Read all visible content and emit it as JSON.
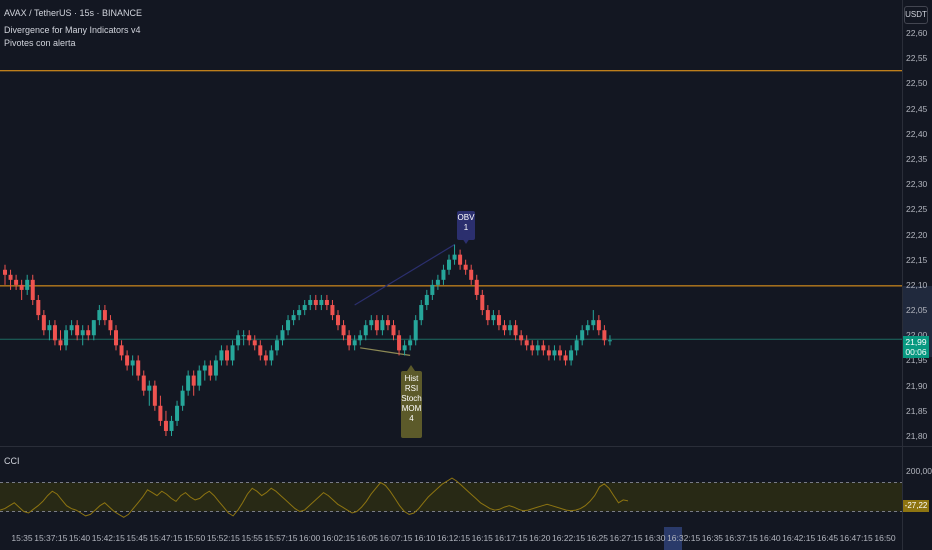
{
  "legend": {
    "symbol_line": "AVAX / TetherUS · 15s · BINANCE",
    "indicator_1": "Divergence for Many Indicators v4",
    "indicator_2": "Pivotes con alerta"
  },
  "currency_button": "USDT",
  "price_axis": {
    "ticks": [
      "22,60",
      "22,55",
      "22,50",
      "22,45",
      "22,40",
      "22,35",
      "22,30",
      "22,25",
      "22,20",
      "22,15",
      "22,10",
      "22,05",
      "22,00",
      "21,95",
      "21,90",
      "21,85",
      "21,80"
    ],
    "min": 21.78,
    "max": 22.62
  },
  "current_price": {
    "value": "21,99",
    "countdown": "00:06"
  },
  "horizontal_levels": {
    "resistance_top": 22.525,
    "resistance_mid": 22.098,
    "current": 21.992
  },
  "time_axis": {
    "ticks": [
      "15:35",
      "15:37:15",
      "15:40",
      "15:42:15",
      "15:45",
      "15:47:15",
      "15:50",
      "15:52:15",
      "15:55",
      "15:57:15",
      "16:00",
      "16:02:15",
      "16:05",
      "16:07:15",
      "16:10",
      "16:12:15",
      "16:15",
      "16:17:15",
      "16:20",
      "16:22:15",
      "16:25",
      "16:27:15",
      "16:30",
      "16:32:15",
      "16:35",
      "16:37:15",
      "16:40",
      "16:42:15",
      "16:45",
      "16:47:15",
      "16:50"
    ]
  },
  "annotations": {
    "obv_label": [
      "OBV",
      "1"
    ],
    "bull_label": [
      "Hist",
      "RSI",
      "Stoch",
      "MOM",
      "4"
    ]
  },
  "cci_panel": {
    "title": "CCI",
    "axis_top": "200,00",
    "value": "-27,22",
    "band_upper": 100,
    "band_lower": -100,
    "values": [
      -90,
      -80,
      -60,
      -40,
      -70,
      -100,
      -110,
      -85,
      -60,
      -30,
      10,
      40,
      20,
      -20,
      -60,
      -80,
      -90,
      -110,
      -130,
      -120,
      -90,
      -60,
      -40,
      -70,
      -100,
      -120,
      -140,
      -120,
      -80,
      -40,
      0,
      50,
      30,
      10,
      40,
      20,
      -10,
      -30,
      10,
      30,
      0,
      -20,
      -10,
      20,
      40,
      10,
      -30,
      -70,
      -110,
      -130,
      -90,
      -40,
      20,
      60,
      40,
      10,
      30,
      60,
      40,
      10,
      -20,
      -50,
      -80,
      -100,
      -90,
      -60,
      -30,
      0,
      30,
      10,
      -20,
      -50,
      -70,
      -90,
      -110,
      -100,
      -70,
      -30,
      20,
      60,
      100,
      80,
      40,
      -10,
      -60,
      -100,
      -120,
      -110,
      -80,
      -40,
      0,
      30,
      60,
      90,
      110,
      130,
      110,
      80,
      50,
      20,
      -10,
      -40,
      -60,
      -80,
      -90,
      -85,
      -70,
      -60,
      -70,
      -85,
      -95,
      -90,
      -80,
      -70,
      -60,
      -50,
      -60,
      -70,
      -80,
      -90,
      -95,
      -90,
      -80,
      -60,
      -30,
      10,
      70,
      90,
      60,
      10,
      -40,
      -20,
      -27
    ]
  },
  "candles": [
    [
      22.13,
      22.14,
      22.1,
      22.12
    ],
    [
      22.12,
      22.13,
      22.09,
      22.11
    ],
    [
      22.11,
      22.12,
      22.09,
      22.1
    ],
    [
      22.1,
      22.11,
      22.07,
      22.09
    ],
    [
      22.09,
      22.12,
      22.08,
      22.11
    ],
    [
      22.11,
      22.12,
      22.06,
      22.07
    ],
    [
      22.07,
      22.08,
      22.03,
      22.04
    ],
    [
      22.04,
      22.05,
      22.0,
      22.01
    ],
    [
      22.01,
      22.03,
      21.99,
      22.02
    ],
    [
      22.02,
      22.03,
      21.98,
      21.99
    ],
    [
      21.99,
      22.01,
      21.97,
      21.98
    ],
    [
      21.98,
      22.02,
      21.97,
      22.01
    ],
    [
      22.01,
      22.03,
      22.0,
      22.02
    ],
    [
      22.02,
      22.03,
      21.99,
      22.0
    ],
    [
      22.0,
      22.02,
      21.98,
      22.01
    ],
    [
      22.01,
      22.02,
      21.99,
      22.0
    ],
    [
      22.0,
      22.03,
      21.99,
      22.03
    ],
    [
      22.03,
      22.06,
      22.02,
      22.05
    ],
    [
      22.05,
      22.06,
      22.02,
      22.03
    ],
    [
      22.03,
      22.04,
      22.0,
      22.01
    ],
    [
      22.01,
      22.02,
      21.97,
      21.98
    ],
    [
      21.98,
      21.99,
      21.95,
      21.96
    ],
    [
      21.96,
      21.97,
      21.93,
      21.94
    ],
    [
      21.94,
      21.96,
      21.92,
      21.95
    ],
    [
      21.95,
      21.96,
      21.91,
      21.92
    ],
    [
      21.92,
      21.93,
      21.88,
      21.89
    ],
    [
      21.89,
      21.91,
      21.86,
      21.9
    ],
    [
      21.9,
      21.91,
      21.85,
      21.86
    ],
    [
      21.86,
      21.88,
      21.82,
      21.83
    ],
    [
      21.83,
      21.85,
      21.8,
      21.81
    ],
    [
      21.81,
      21.84,
      21.8,
      21.83
    ],
    [
      21.83,
      21.87,
      21.82,
      21.86
    ],
    [
      21.86,
      21.9,
      21.85,
      21.89
    ],
    [
      21.89,
      21.93,
      21.88,
      21.92
    ],
    [
      21.92,
      21.93,
      21.88,
      21.9
    ],
    [
      21.9,
      21.94,
      21.89,
      21.93
    ],
    [
      21.93,
      21.95,
      21.91,
      21.94
    ],
    [
      21.94,
      21.95,
      21.91,
      21.92
    ],
    [
      21.92,
      21.96,
      21.91,
      21.95
    ],
    [
      21.95,
      21.98,
      21.94,
      21.97
    ],
    [
      21.97,
      21.98,
      21.94,
      21.95
    ],
    [
      21.95,
      21.99,
      21.94,
      21.98
    ],
    [
      21.98,
      22.01,
      21.97,
      22.0
    ],
    [
      22.0,
      22.01,
      21.98,
      22.0
    ],
    [
      22.0,
      22.01,
      21.98,
      21.99
    ],
    [
      21.99,
      22.0,
      21.97,
      21.98
    ],
    [
      21.98,
      21.99,
      21.95,
      21.96
    ],
    [
      21.96,
      21.97,
      21.94,
      21.95
    ],
    [
      21.95,
      21.98,
      21.94,
      21.97
    ],
    [
      21.97,
      22.0,
      21.96,
      21.99
    ],
    [
      21.99,
      22.02,
      21.98,
      22.01
    ],
    [
      22.01,
      22.04,
      22.0,
      22.03
    ],
    [
      22.03,
      22.05,
      22.02,
      22.04
    ],
    [
      22.04,
      22.06,
      22.03,
      22.05
    ],
    [
      22.05,
      22.07,
      22.04,
      22.06
    ],
    [
      22.06,
      22.08,
      22.05,
      22.07
    ],
    [
      22.07,
      22.08,
      22.05,
      22.06
    ],
    [
      22.06,
      22.08,
      22.05,
      22.07
    ],
    [
      22.07,
      22.08,
      22.05,
      22.06
    ],
    [
      22.06,
      22.07,
      22.03,
      22.04
    ],
    [
      22.04,
      22.05,
      22.01,
      22.02
    ],
    [
      22.02,
      22.03,
      21.99,
      22.0
    ],
    [
      22.0,
      22.01,
      21.97,
      21.98
    ],
    [
      21.98,
      22.0,
      21.97,
      21.99
    ],
    [
      21.99,
      22.01,
      21.98,
      22.0
    ],
    [
      22.0,
      22.03,
      21.99,
      22.02
    ],
    [
      22.02,
      22.04,
      22.01,
      22.03
    ],
    [
      22.03,
      22.04,
      22.0,
      22.01
    ],
    [
      22.01,
      22.04,
      22.0,
      22.03
    ],
    [
      22.03,
      22.04,
      22.01,
      22.02
    ],
    [
      22.02,
      22.03,
      21.99,
      22.0
    ],
    [
      22.0,
      22.01,
      21.96,
      21.97
    ],
    [
      21.97,
      21.99,
      21.96,
      21.98
    ],
    [
      21.98,
      22.0,
      21.97,
      21.99
    ],
    [
      21.99,
      22.04,
      21.98,
      22.03
    ],
    [
      22.03,
      22.07,
      22.02,
      22.06
    ],
    [
      22.06,
      22.09,
      22.05,
      22.08
    ],
    [
      22.08,
      22.11,
      22.07,
      22.1
    ],
    [
      22.1,
      22.12,
      22.09,
      22.11
    ],
    [
      22.11,
      22.14,
      22.1,
      22.13
    ],
    [
      22.13,
      22.16,
      22.12,
      22.15
    ],
    [
      22.15,
      22.18,
      22.14,
      22.16
    ],
    [
      22.16,
      22.17,
      22.13,
      22.14
    ],
    [
      22.14,
      22.15,
      22.12,
      22.13
    ],
    [
      22.13,
      22.14,
      22.1,
      22.11
    ],
    [
      22.11,
      22.12,
      22.07,
      22.08
    ],
    [
      22.08,
      22.09,
      22.04,
      22.05
    ],
    [
      22.05,
      22.06,
      22.02,
      22.03
    ],
    [
      22.03,
      22.05,
      22.02,
      22.04
    ],
    [
      22.04,
      22.05,
      22.01,
      22.02
    ],
    [
      22.02,
      22.03,
      22.0,
      22.01
    ],
    [
      22.01,
      22.03,
      22.0,
      22.02
    ],
    [
      22.02,
      22.03,
      21.99,
      22.0
    ],
    [
      22.0,
      22.01,
      21.98,
      21.99
    ],
    [
      21.99,
      22.0,
      21.97,
      21.98
    ],
    [
      21.98,
      21.99,
      21.96,
      21.97
    ],
    [
      21.97,
      21.99,
      21.96,
      21.98
    ],
    [
      21.98,
      21.99,
      21.96,
      21.97
    ],
    [
      21.97,
      21.98,
      21.95,
      21.96
    ],
    [
      21.96,
      21.98,
      21.95,
      21.97
    ],
    [
      21.97,
      21.98,
      21.95,
      21.96
    ],
    [
      21.96,
      21.97,
      21.94,
      21.95
    ],
    [
      21.95,
      21.98,
      21.94,
      21.97
    ],
    [
      21.97,
      22.0,
      21.96,
      21.99
    ],
    [
      21.99,
      22.02,
      21.98,
      22.01
    ],
    [
      22.01,
      22.03,
      22.0,
      22.02
    ],
    [
      22.02,
      22.05,
      22.01,
      22.03
    ],
    [
      22.03,
      22.04,
      22.0,
      22.01
    ],
    [
      22.01,
      22.02,
      21.98,
      21.99
    ],
    [
      21.99,
      22.0,
      21.98,
      21.99
    ]
  ]
}
